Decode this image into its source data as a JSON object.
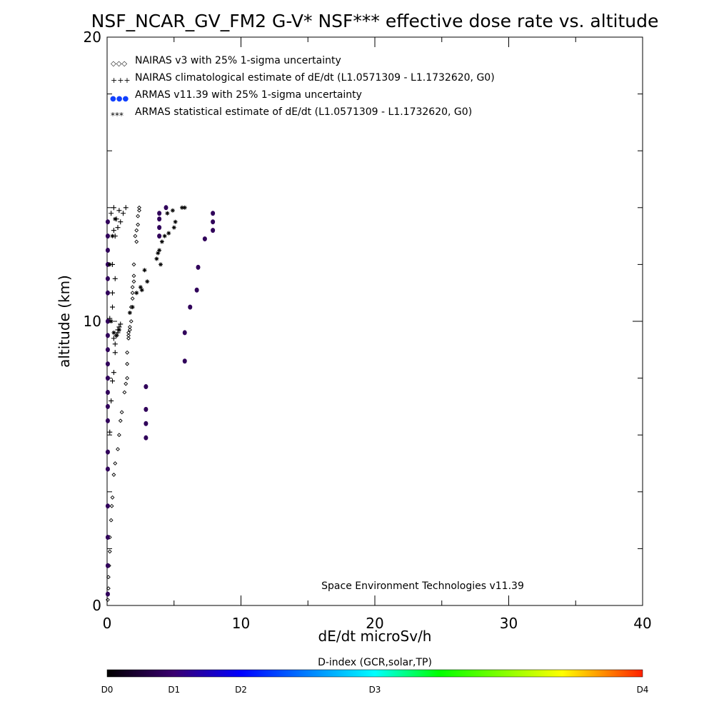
{
  "chart_data": {
    "type": "scatter",
    "title": "NSF_NCAR_GV_FM2 G-V* NSF*** effective dose rate vs. altitude",
    "xlabel": "dE/dt microSv/h",
    "ylabel": "altitude (km)",
    "xlim": [
      0,
      40
    ],
    "ylim": [
      0,
      20
    ],
    "x_ticks": [
      0,
      10,
      20,
      30,
      40
    ],
    "y_ticks": [
      0,
      10,
      20
    ],
    "x_minor_step": 5,
    "y_minor_step": 2,
    "grid": false,
    "legend_position": "top-left",
    "legend": [
      {
        "symbol": "◇◇◇",
        "label": "NAIRAS v3 with 25% 1-sigma uncertainty"
      },
      {
        "symbol": "+++",
        "label": "NAIRAS climatological estimate of dE/dt (L1.0571309 - L1.1732620, G0)"
      },
      {
        "symbol": "●●●",
        "label": "ARMAS v11.39 with 25% 1-sigma uncertainty"
      },
      {
        "symbol": "***",
        "label": "ARMAS statistical estimate of dE/dt (L1.0571309 - L1.1732620, G0)"
      }
    ],
    "annotation": "Space Environment Technologies v11.39",
    "series": [
      {
        "marker": "diamond",
        "color": "#000000",
        "points": [
          [
            0.05,
            0.2
          ],
          [
            0.1,
            0.6
          ],
          [
            0.1,
            1.0
          ],
          [
            0.15,
            1.4
          ],
          [
            0.2,
            1.9
          ],
          [
            0.2,
            2.4
          ],
          [
            0.3,
            3.0
          ],
          [
            0.35,
            3.5
          ],
          [
            0.4,
            3.8
          ],
          [
            0.5,
            4.6
          ],
          [
            0.6,
            5.0
          ],
          [
            0.8,
            5.5
          ],
          [
            0.9,
            6.0
          ],
          [
            1.0,
            6.5
          ],
          [
            1.1,
            6.8
          ],
          [
            1.3,
            7.5
          ],
          [
            1.4,
            7.8
          ],
          [
            1.5,
            8.0
          ],
          [
            1.5,
            8.5
          ],
          [
            1.5,
            8.9
          ],
          [
            1.6,
            9.4
          ],
          [
            1.6,
            9.6
          ],
          [
            1.7,
            9.8
          ],
          [
            1.8,
            10.0
          ],
          [
            1.8,
            10.5
          ],
          [
            1.9,
            11.0
          ],
          [
            1.9,
            11.2
          ],
          [
            2.0,
            11.6
          ],
          [
            2.0,
            12.0
          ],
          [
            2.1,
            13.0
          ],
          [
            2.2,
            13.2
          ],
          [
            2.3,
            13.4
          ],
          [
            2.3,
            13.7
          ],
          [
            2.4,
            13.9
          ],
          [
            2.4,
            14.0
          ],
          [
            1.6,
            9.5
          ],
          [
            1.7,
            9.7
          ],
          [
            2.2,
            12.8
          ],
          [
            2.0,
            11.4
          ],
          [
            1.9,
            10.8
          ]
        ]
      },
      {
        "marker": "plus",
        "color": "#000000",
        "points": [
          [
            0.2,
            6.1
          ],
          [
            0.3,
            7.2
          ],
          [
            0.4,
            7.9
          ],
          [
            0.5,
            8.2
          ],
          [
            0.6,
            8.9
          ],
          [
            0.6,
            9.2
          ],
          [
            0.7,
            9.5
          ],
          [
            0.8,
            9.7
          ],
          [
            0.9,
            9.8
          ],
          [
            1.0,
            9.9
          ],
          [
            0.2,
            10.1
          ],
          [
            0.4,
            10.5
          ],
          [
            0.4,
            11.0
          ],
          [
            0.6,
            11.5
          ],
          [
            0.4,
            12.0
          ],
          [
            0.6,
            13.0
          ],
          [
            0.8,
            13.3
          ],
          [
            1.0,
            13.5
          ],
          [
            1.2,
            13.8
          ],
          [
            1.4,
            14.0
          ],
          [
            0.5,
            13.2
          ],
          [
            0.7,
            13.6
          ],
          [
            0.9,
            13.9
          ],
          [
            0.3,
            13.8
          ],
          [
            0.5,
            14.0
          ],
          [
            0.5,
            9.4
          ],
          [
            0.8,
            9.6
          ]
        ]
      },
      {
        "marker": "dot",
        "color": "#30005a",
        "points": [
          [
            2.9,
            5.9
          ],
          [
            2.9,
            6.4
          ],
          [
            2.9,
            6.9
          ],
          [
            2.9,
            7.7
          ],
          [
            5.8,
            8.6
          ],
          [
            5.8,
            9.6
          ],
          [
            6.2,
            10.5
          ],
          [
            6.7,
            11.1
          ],
          [
            6.8,
            11.9
          ],
          [
            7.3,
            12.9
          ],
          [
            7.9,
            13.2
          ],
          [
            7.9,
            13.5
          ],
          [
            7.9,
            13.8
          ],
          [
            4.4,
            14.0
          ],
          [
            3.9,
            13.0
          ],
          [
            3.9,
            13.3
          ],
          [
            3.9,
            13.6
          ],
          [
            3.9,
            13.8
          ],
          [
            0.05,
            0.4
          ],
          [
            0.05,
            1.4
          ],
          [
            0.05,
            2.4
          ],
          [
            0.05,
            3.5
          ],
          [
            0.05,
            4.8
          ],
          [
            0.05,
            5.4
          ],
          [
            0.05,
            6.5
          ],
          [
            0.05,
            7.0
          ],
          [
            0.05,
            7.5
          ],
          [
            0.05,
            8.0
          ],
          [
            0.05,
            8.5
          ],
          [
            0.05,
            9.0
          ],
          [
            0.05,
            9.5
          ],
          [
            0.05,
            10.0
          ],
          [
            0.05,
            11.0
          ],
          [
            0.05,
            11.5
          ],
          [
            0.05,
            12.0
          ],
          [
            0.05,
            12.5
          ],
          [
            0.05,
            13.0
          ],
          [
            0.05,
            13.5
          ]
        ]
      },
      {
        "marker": "asterisk",
        "color": "#000000",
        "points": [
          [
            0.3,
            10.0
          ],
          [
            0.5,
            9.6
          ],
          [
            0.7,
            9.5
          ],
          [
            0.9,
            9.7
          ],
          [
            1.7,
            10.3
          ],
          [
            1.9,
            10.5
          ],
          [
            2.2,
            11.0
          ],
          [
            2.5,
            11.2
          ],
          [
            2.8,
            11.8
          ],
          [
            3.0,
            11.4
          ],
          [
            3.7,
            12.2
          ],
          [
            3.9,
            12.5
          ],
          [
            4.1,
            12.8
          ],
          [
            4.3,
            13.0
          ],
          [
            4.6,
            13.1
          ],
          [
            5.0,
            13.3
          ],
          [
            5.1,
            13.5
          ],
          [
            4.5,
            13.8
          ],
          [
            4.9,
            13.9
          ],
          [
            5.6,
            14.0
          ],
          [
            5.8,
            14.0
          ],
          [
            4.0,
            12.0
          ],
          [
            3.8,
            12.4
          ],
          [
            2.6,
            11.1
          ],
          [
            0.2,
            12.0
          ],
          [
            0.4,
            13.0
          ],
          [
            0.6,
            13.6
          ]
        ]
      }
    ],
    "colorbar": {
      "label": "D-index (GCR,solar,TP)",
      "ticks": [
        {
          "label": "D0",
          "value": 0
        },
        {
          "label": "D1",
          "value": 1
        },
        {
          "label": "D2",
          "value": 2
        },
        {
          "label": "D3",
          "value": 3
        },
        {
          "label": "D4",
          "value": 4
        }
      ],
      "tick_positions": [
        0,
        0.125,
        0.25,
        0.5,
        1.0
      ],
      "colors": [
        "#000000",
        "#3a0070",
        "#0000ff",
        "#00ffff",
        "#00ff00",
        "#ffff00",
        "#ff2000"
      ]
    }
  }
}
